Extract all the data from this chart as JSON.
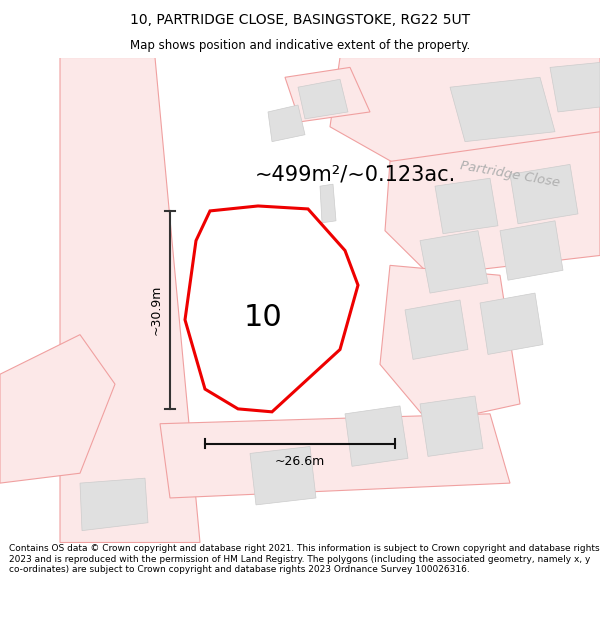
{
  "title_line1": "10, PARTRIDGE CLOSE, BASINGSTOKE, RG22 5UT",
  "title_line2": "Map shows position and indicative extent of the property.",
  "footer_text": "Contains OS data © Crown copyright and database right 2021. This information is subject to Crown copyright and database rights 2023 and is reproduced with the permission of HM Land Registry. The polygons (including the associated geometry, namely x, y co-ordinates) are subject to Crown copyright and database rights 2023 Ordnance Survey 100026316.",
  "area_label": "~499m²/~0.123ac.",
  "number_label": "10",
  "dim_h": "~30.9m",
  "dim_w": "~26.6m",
  "road_label": "Partridge Close",
  "bg_color": "#ffffff",
  "map_bg": "#ffffff",
  "road_fill": "#fce8e8",
  "road_edge": "#f0a0a0",
  "building_fill": "#e0e0e0",
  "building_edge": "#cccccc",
  "plot_edge": "#ee0000"
}
